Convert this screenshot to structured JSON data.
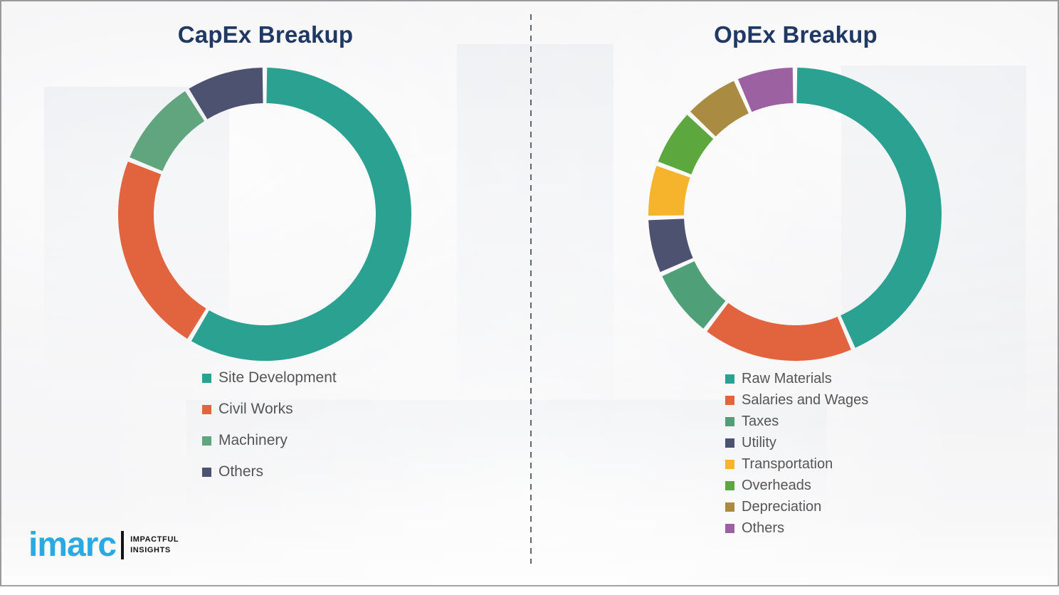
{
  "accent_colors": {
    "title_navy": "#203864",
    "legend_text": "#555555",
    "brand_blue": "#29ABE2",
    "divider_gray": "#5f6670"
  },
  "brand": {
    "name": "imarc",
    "tagline_line1": "IMPACTFUL",
    "tagline_line2": "INSIGHTS"
  },
  "chart_data": [
    {
      "type": "pie",
      "variant": "donut",
      "title": "CapEx Breakup",
      "labels": [
        "Site Development",
        "Civil Works",
        "Machinery",
        "Others"
      ],
      "values": [
        58.6,
        22.5,
        10.0,
        8.9
      ],
      "colors": [
        "#2BA191",
        "#E2643F",
        "#61A57E",
        "#4C5270"
      ],
      "units": "percent_share_estimated",
      "start_angle_deg": 0,
      "direction": "clockwise",
      "legend_position": "bottom-left",
      "grid": false
    },
    {
      "type": "pie",
      "variant": "donut",
      "title": "OpEx Breakup",
      "labels": [
        "Raw Materials",
        "Salaries and Wages",
        "Taxes",
        "Utility",
        "Transportation",
        "Overheads",
        "Depreciation",
        "Others"
      ],
      "values": [
        43.5,
        17.0,
        7.8,
        6.3,
        6.0,
        6.5,
        6.3,
        6.6
      ],
      "colors": [
        "#2BA191",
        "#E2643F",
        "#4F9F79",
        "#4C5270",
        "#F6B42C",
        "#5CA83F",
        "#A98B41",
        "#9C61A0"
      ],
      "units": "percent_share_estimated",
      "start_angle_deg": 0,
      "direction": "clockwise",
      "legend_position": "bottom-right",
      "grid": false
    }
  ]
}
